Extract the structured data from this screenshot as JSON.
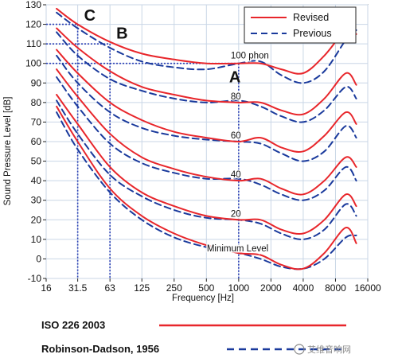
{
  "chart_data": {
    "type": "line",
    "xlabel": "Frequency [Hz]",
    "ylabel": "Sound Pressure Level [dB]",
    "xscale": "log2",
    "xlim": [
      16,
      16000
    ],
    "ylim": [
      -10,
      130
    ],
    "x_ticks": [
      "16",
      "31.5",
      "63",
      "125",
      "250",
      "500",
      "1000",
      "2000",
      "4000",
      "8000",
      "16000"
    ],
    "y_ticks": [
      "-10",
      "0",
      "10",
      "20",
      "30",
      "40",
      "50",
      "60",
      "70",
      "80",
      "90",
      "100",
      "110",
      "120",
      "130"
    ],
    "legend": {
      "position": "top-right",
      "entries": [
        {
          "label": "Revised",
          "color": "#e8262b",
          "style": "solid"
        },
        {
          "label": "Previous",
          "color": "#1a3a9c",
          "style": "dashed"
        }
      ]
    },
    "curve_labels": [
      {
        "text": "100 phon",
        "x": 1000,
        "y": 101
      },
      {
        "text": "80",
        "x": 1000,
        "y": 80
      },
      {
        "text": "60",
        "x": 1000,
        "y": 60
      },
      {
        "text": "40",
        "x": 1000,
        "y": 40
      },
      {
        "text": "20",
        "x": 1000,
        "y": 20
      },
      {
        "text": "Minimum Level",
        "x": 1000,
        "y": 3
      }
    ],
    "point_labels": [
      {
        "text": "C",
        "x": 31.5,
        "y": 121
      },
      {
        "text": "B",
        "x": 63,
        "y": 111
      },
      {
        "text": "A",
        "x": 1000,
        "y": 100
      }
    ],
    "guide_points": [
      {
        "x": 31.5,
        "y": 120
      },
      {
        "x": 63,
        "y": 110
      },
      {
        "x": 1000,
        "y": 100
      }
    ],
    "x": [
      20,
      31.5,
      63,
      125,
      250,
      500,
      1000,
      1600,
      2500,
      4000,
      6300,
      10000,
      12500
    ],
    "series": [
      {
        "name": "Revised",
        "level": "100",
        "values": [
          128,
          120,
          111,
          105,
          102,
          100,
          100,
          100,
          97,
          95,
          104,
          117,
          115
        ]
      },
      {
        "name": "Revised",
        "level": "80",
        "values": [
          118,
          108,
          96,
          88,
          84,
          81,
          80,
          80,
          76,
          74,
          82,
          95,
          89
        ]
      },
      {
        "name": "Revised",
        "level": "60",
        "values": [
          107,
          95,
          80,
          71,
          65,
          62,
          60,
          62,
          57,
          55,
          63,
          75,
          69
        ]
      },
      {
        "name": "Revised",
        "level": "40",
        "values": [
          97,
          83,
          64,
          52,
          46,
          42,
          40,
          41,
          36,
          33,
          40,
          52,
          47
        ]
      },
      {
        "name": "Revised",
        "level": "20",
        "values": [
          84,
          69,
          47,
          34,
          27,
          22,
          20,
          20,
          15,
          13,
          20,
          33,
          27
        ]
      },
      {
        "name": "Revised",
        "level": "Minimum Level",
        "values": [
          78,
          60,
          36,
          22,
          13,
          7,
          3,
          2,
          -3,
          -5,
          3,
          16,
          8
        ]
      },
      {
        "name": "Previous",
        "level": "100",
        "values": [
          126,
          118,
          108,
          101,
          98,
          97,
          100,
          101,
          94,
          90,
          96,
          112,
          117
        ]
      },
      {
        "name": "Previous",
        "level": "80",
        "values": [
          116,
          104,
          92,
          86,
          82,
          80,
          81,
          78,
          73,
          70,
          76,
          88,
          82
        ]
      },
      {
        "name": "Previous",
        "level": "60",
        "values": [
          104,
          90,
          75,
          67,
          63,
          61,
          60,
          59,
          54,
          50,
          55,
          68,
          62
        ]
      },
      {
        "name": "Previous",
        "level": "40",
        "values": [
          93,
          78,
          59,
          49,
          44,
          41,
          41,
          38,
          33,
          30,
          35,
          47,
          40
        ]
      },
      {
        "name": "Previous",
        "level": "20",
        "values": [
          81,
          64,
          43,
          32,
          25,
          21,
          20,
          18,
          13,
          10,
          15,
          28,
          22
        ]
      },
      {
        "name": "Previous",
        "level": "Minimum Level",
        "values": [
          75,
          56,
          34,
          20,
          11,
          6,
          3,
          0,
          -4,
          -5,
          0,
          11,
          12
        ]
      }
    ]
  },
  "bottom_legend": {
    "items": [
      {
        "label": "ISO 226 2003",
        "color": "#e8262b",
        "style": "solid"
      },
      {
        "label": "Robinson-Dadson, 1956",
        "color": "#1a3a9c",
        "style": "dashed"
      }
    ]
  },
  "watermark": "艾维音响网"
}
